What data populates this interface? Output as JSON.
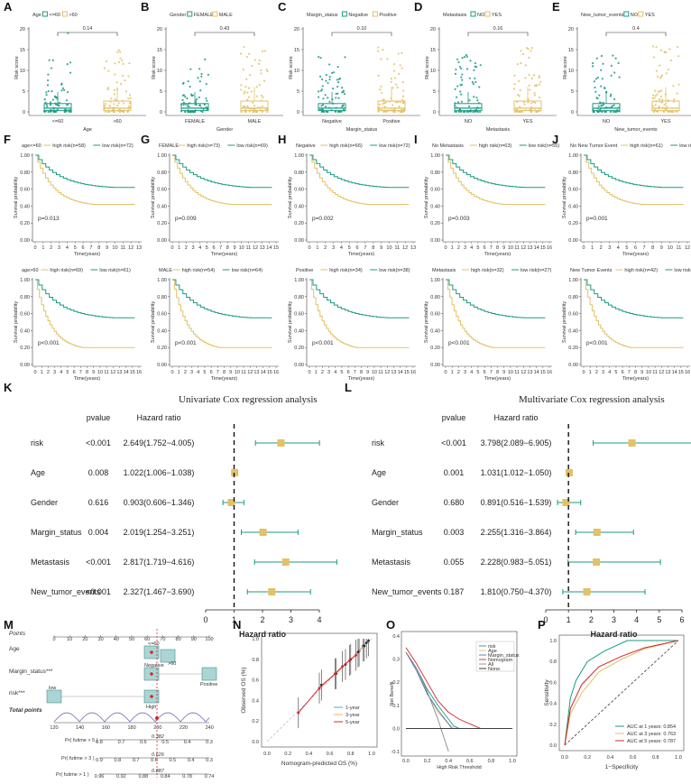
{
  "colors": {
    "teal": "#1a9b82",
    "gold": "#e3c167",
    "red": "#d7262b",
    "text": "#222222"
  },
  "boxplots": [
    {
      "letter": "A",
      "legend_title": "Age",
      "groups": [
        "<=60",
        ">60"
      ],
      "pvalue": "0.14",
      "xlabel": "Age",
      "ylabel": "Risk score"
    },
    {
      "letter": "B",
      "legend_title": "Gender",
      "groups": [
        "FEMALE",
        "MALE"
      ],
      "pvalue": "0.43",
      "xlabel": "Gender",
      "ylabel": "Risk score"
    },
    {
      "letter": "C",
      "legend_title": "Margin_status",
      "groups": [
        "Negative",
        "Positive"
      ],
      "pvalue": "0.10",
      "xlabel": "Margin_status",
      "ylabel": "Risk score"
    },
    {
      "letter": "D",
      "legend_title": "Metastasis",
      "groups": [
        "NO",
        "YES"
      ],
      "pvalue": "0.16",
      "xlabel": "Metastasis",
      "ylabel": "Risk score"
    },
    {
      "letter": "E",
      "legend_title": "New_tumor_events",
      "groups": [
        "NO",
        "YES"
      ],
      "pvalue": "0.4",
      "xlabel": "New_tumor_events",
      "ylabel": "Risk score"
    }
  ],
  "km": {
    "top": [
      {
        "letter": "F",
        "subgroup": "age<=60",
        "high": "high risk(n=58)",
        "low": "low risk(n=72)",
        "p": "p=0.013",
        "xmax": 13
      },
      {
        "letter": "G",
        "subgroup": "FEMALE",
        "high": "high risk(n=73)",
        "low": "low risk(n=69)",
        "p": "p=0.009",
        "xmax": 15
      },
      {
        "letter": "H",
        "subgroup": "Negative",
        "high": "high risk(n=66)",
        "low": "low risk(n=72)",
        "p": "p=0.002",
        "xmax": 13
      },
      {
        "letter": "I",
        "subgroup": "No Metastasis",
        "high": "high risk(n=63)",
        "low": "low risk(n=55)",
        "p": "p=0.003",
        "xmax": 16
      },
      {
        "letter": "J",
        "subgroup": "No New Tumor Event",
        "high": "high risk(n=61)",
        "low": "low risk(n=63)",
        "p": "p=0.001",
        "xmax": 12
      }
    ],
    "bottom": [
      {
        "subgroup": "age>60",
        "high": "high risk(n=69)",
        "low": "low risk(n=61)",
        "p": "p<0.001",
        "xmax": 16
      },
      {
        "subgroup": "MALE",
        "high": "high risk(n=54)",
        "low": "low risk(n=64)",
        "p": "p<0.001",
        "xmax": 16
      },
      {
        "subgroup": "Positive",
        "high": "high risk(n=34)",
        "low": "low risk(n=38)",
        "p": "p<0.001",
        "xmax": 16
      },
      {
        "subgroup": "Metastasis",
        "high": "high risk(n=32)",
        "low": "low risk(n=27)",
        "p": "p<0.001",
        "xmax": 16
      },
      {
        "subgroup": "New Tumor Events",
        "high": "high risk(n=42)",
        "low": "low risk(n=50)",
        "p": "p<0.001",
        "xmax": 16
      }
    ],
    "xlabel": "Time(years)",
    "ylabel": "Survival probability",
    "yticks": [
      "0.00",
      "0.20",
      "0.40",
      "0.60",
      "0.80",
      "1.00"
    ]
  },
  "chart_data": [
    {
      "type": "forest",
      "letter": "K",
      "title": "Univariate Cox regression analysis",
      "col_pvalue": "pvalue",
      "col_hr": "Hazard ratio",
      "xlabel": "Hazard ratio",
      "xticks": [
        0,
        1,
        2,
        3,
        4
      ],
      "rows": [
        {
          "name": "risk",
          "pvalue": "<0.001",
          "hr_text": "2.649(1.752−4.005)",
          "hr": 2.649,
          "lo": 1.752,
          "hi": 4.005
        },
        {
          "name": "Age",
          "pvalue": "0.008",
          "hr_text": "1.022(1.006−1.038)",
          "hr": 1.022,
          "lo": 1.006,
          "hi": 1.038
        },
        {
          "name": "Gender",
          "pvalue": "0.616",
          "hr_text": "0.903(0.606−1.346)",
          "hr": 0.903,
          "lo": 0.606,
          "hi": 1.346
        },
        {
          "name": "Margin_status",
          "pvalue": "0.004",
          "hr_text": "2.019(1.254−3.251)",
          "hr": 2.019,
          "lo": 1.254,
          "hi": 3.251
        },
        {
          "name": "Metastasis",
          "pvalue": "<0.001",
          "hr_text": "2.817(1.719−4.616)",
          "hr": 2.817,
          "lo": 1.719,
          "hi": 4.616
        },
        {
          "name": "New_tumor_events",
          "pvalue": "<0.001",
          "hr_text": "2.327(1.467−3.690)",
          "hr": 2.327,
          "lo": 1.467,
          "hi": 3.69
        }
      ]
    },
    {
      "type": "forest",
      "letter": "L",
      "title": "Multivariate Cox regression analysis",
      "col_pvalue": "pvalue",
      "col_hr": "Hazard ratio",
      "xlabel": "Hazard ratio",
      "xticks": [
        0,
        1,
        2,
        3,
        4,
        5,
        6
      ],
      "rows": [
        {
          "name": "risk",
          "pvalue": "<0.001",
          "hr_text": "3.798(2.089−6.905)",
          "hr": 3.798,
          "lo": 2.089,
          "hi": 6.905
        },
        {
          "name": "Age",
          "pvalue": "0.001",
          "hr_text": "1.031(1.012−1.050)",
          "hr": 1.031,
          "lo": 1.012,
          "hi": 1.05
        },
        {
          "name": "Gender",
          "pvalue": "0.680",
          "hr_text": "0.891(0.516−1.539)",
          "hr": 0.891,
          "lo": 0.516,
          "hi": 1.539
        },
        {
          "name": "Margin_status",
          "pvalue": "0.003",
          "hr_text": "2.255(1.316−3.864)",
          "hr": 2.255,
          "lo": 1.316,
          "hi": 3.864
        },
        {
          "name": "Metastasis",
          "pvalue": "0.055",
          "hr_text": "2.228(0.983−5.051)",
          "hr": 2.228,
          "lo": 0.983,
          "hi": 5.051
        },
        {
          "name": "New_tumor_events",
          "pvalue": "0.187",
          "hr_text": "1.810(0.750−4.370)",
          "hr": 1.81,
          "lo": 0.75,
          "hi": 4.37
        }
      ]
    },
    {
      "type": "nomogram",
      "letter": "M",
      "rows": [
        "Points",
        "Age",
        "Margin_status***",
        "risk***",
        "Total points",
        "Pr( futime > 5 )",
        "Pr( futime > 3 )",
        "Pr( futime > 1 )"
      ],
      "points_ticks": [
        "0",
        "10",
        "20",
        "30",
        "40",
        "50",
        "60",
        "70",
        "80",
        "90",
        "100"
      ],
      "total_ticks": [
        "120",
        "140",
        "160",
        "180",
        "200",
        "220",
        "240"
      ],
      "age_labels": [
        "<=60",
        ">60"
      ],
      "margin_labels": [
        "Negative",
        "Positive"
      ],
      "risk_labels": [
        "low",
        "High"
      ],
      "pr5_ticks": [
        "0.8",
        "0.7",
        "0.6",
        "0.5",
        "0.4",
        "0.3"
      ],
      "pr3_ticks": [
        "0.9",
        "0.8",
        "0.7",
        "0.6",
        "0.5",
        "0.4",
        "0.3"
      ],
      "pr1_ticks": [
        "0.96",
        "0.92",
        "0.88",
        "0.84",
        "0.78",
        "0.74"
      ],
      "highlights": [
        "0.382",
        "0.626",
        "0.887"
      ]
    },
    {
      "type": "line",
      "letter": "N",
      "xlabel": "Nomogram-predicted OS (%)",
      "ylabel": "Observed OS (%)",
      "xlim": [
        0,
        1
      ],
      "ylim": [
        0,
        1
      ],
      "xticks": [
        "0.0",
        "0.2",
        "0.4",
        "0.6",
        "0.8",
        "1.0"
      ],
      "yticks": [
        "0.0",
        "0.2",
        "0.4",
        "0.6",
        "0.8",
        "1.0"
      ],
      "series": [
        {
          "name": "1-year",
          "x": [
            0.88,
            0.92,
            0.95,
            0.97
          ],
          "y": [
            0.88,
            0.93,
            0.96,
            0.98
          ]
        },
        {
          "name": "3-year",
          "x": [
            0.52,
            0.66,
            0.75,
            0.8,
            0.87,
            0.93
          ],
          "y": [
            0.55,
            0.66,
            0.75,
            0.8,
            0.87,
            0.93
          ]
        },
        {
          "name": "5-year",
          "x": [
            0.3,
            0.5,
            0.65,
            0.72,
            0.79,
            0.85
          ],
          "y": [
            0.28,
            0.52,
            0.66,
            0.73,
            0.79,
            0.84
          ]
        }
      ]
    },
    {
      "type": "line",
      "letter": "O",
      "xlabel": "High Risk Threshold",
      "ylabel": "Net Benefit",
      "xticks": [
        "0.0",
        "0.2",
        "0.4",
        "0.6",
        "0.8",
        "1.0"
      ],
      "yticks": [
        "-0.1",
        "0.0",
        "0.1",
        "0.2",
        "0.3",
        "0.4"
      ],
      "ylim": [
        -0.1,
        0.4
      ],
      "series": [
        {
          "name": "risk",
          "x": [
            0,
            0.1,
            0.2,
            0.3,
            0.4,
            0.45,
            0.5
          ],
          "y": [
            0.33,
            0.26,
            0.17,
            0.1,
            0.04,
            0.01,
            0.0
          ]
        },
        {
          "name": "Age",
          "x": [
            0,
            0.1,
            0.2,
            0.3,
            0.4,
            0.45
          ],
          "y": [
            0.33,
            0.25,
            0.15,
            0.07,
            0.02,
            0.0
          ]
        },
        {
          "name": "Margin_status",
          "x": [
            0,
            0.1,
            0.2,
            0.3,
            0.4,
            0.43
          ],
          "y": [
            0.33,
            0.25,
            0.15,
            0.08,
            0.02,
            0.0
          ]
        },
        {
          "name": "Nomogram",
          "x": [
            0,
            0.1,
            0.2,
            0.3,
            0.4,
            0.5,
            0.6,
            0.7
          ],
          "y": [
            0.35,
            0.28,
            0.2,
            0.12,
            0.07,
            0.04,
            0.02,
            0.0
          ]
        },
        {
          "name": "All",
          "x": [
            0,
            0.1,
            0.2,
            0.3,
            0.4
          ],
          "y": [
            0.33,
            0.26,
            0.16,
            0.04,
            -0.1
          ]
        },
        {
          "name": "None",
          "x": [
            0,
            1
          ],
          "y": [
            0,
            0
          ]
        }
      ]
    },
    {
      "type": "line",
      "letter": "P",
      "xlabel": "1−Specificity",
      "ylabel": "Sensitivity",
      "xticks": [
        "0.0",
        "0.2",
        "0.4",
        "0.6",
        "0.8",
        "1.0"
      ],
      "yticks": [
        "0.0",
        "0.2",
        "0.4",
        "0.6",
        "0.8",
        "1.0"
      ],
      "series": [
        {
          "name": "AUC at 1 years: 0.854",
          "x": [
            0,
            0.05,
            0.1,
            0.2,
            0.35,
            0.55,
            1
          ],
          "y": [
            0,
            0.45,
            0.62,
            0.8,
            0.9,
            1.0,
            1.0
          ]
        },
        {
          "name": "AUC at 3 years: 0.763",
          "x": [
            0,
            0.05,
            0.15,
            0.3,
            0.5,
            0.7,
            1
          ],
          "y": [
            0,
            0.3,
            0.5,
            0.7,
            0.82,
            0.92,
            1.0
          ]
        },
        {
          "name": "AUC at 5 years: 0.787",
          "x": [
            0,
            0.05,
            0.15,
            0.3,
            0.5,
            0.7,
            1
          ],
          "y": [
            0,
            0.35,
            0.58,
            0.75,
            0.85,
            0.93,
            1.0
          ]
        }
      ]
    }
  ]
}
